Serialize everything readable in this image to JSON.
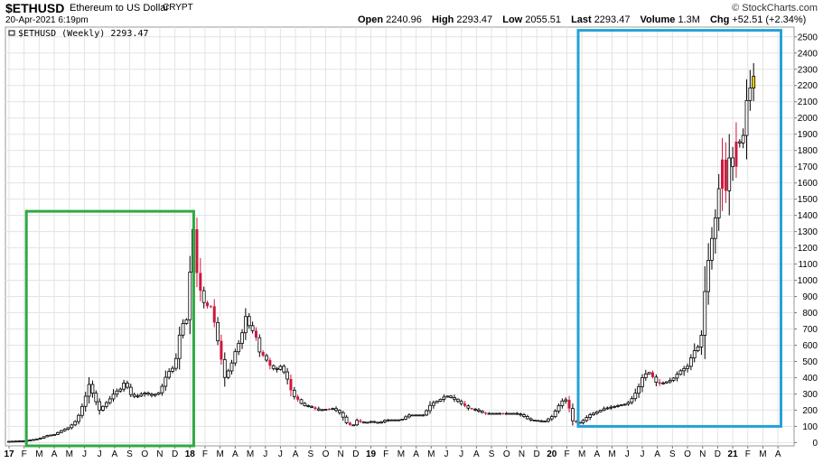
{
  "header": {
    "symbol": "$ETHUSD",
    "name": "Ethereum to US Dollar",
    "exchange": "CRYPT",
    "datetime": "20-Apr-2021 6:19pm",
    "brand": "© StockCharts.com",
    "quote": {
      "open_label": "Open",
      "open": "2240.96",
      "high_label": "High",
      "high": "2293.47",
      "low_label": "Low",
      "low": "2055.51",
      "last_label": "Last",
      "last": "2293.47",
      "volume_label": "Volume",
      "volume": "1.3M",
      "chg_label": "Chg",
      "chg": "+52.51 (+2.34%)"
    }
  },
  "chart_data": {
    "type": "candlestick",
    "legend": "$ETHUSD (Weekly) 2293.47",
    "ylim": [
      -20,
      2560
    ],
    "y_ticks": [
      0,
      100,
      200,
      300,
      400,
      500,
      600,
      700,
      800,
      900,
      1000,
      1100,
      1200,
      1300,
      1400,
      1500,
      1600,
      1700,
      1800,
      1900,
      2000,
      2100,
      2200,
      2300,
      2400,
      2500
    ],
    "x_ticks": [
      {
        "label": "17",
        "t": 0
      },
      {
        "label": "F",
        "t": 1
      },
      {
        "label": "M",
        "t": 2
      },
      {
        "label": "A",
        "t": 3
      },
      {
        "label": "M",
        "t": 4
      },
      {
        "label": "J",
        "t": 5
      },
      {
        "label": "J",
        "t": 6
      },
      {
        "label": "A",
        "t": 7
      },
      {
        "label": "S",
        "t": 8
      },
      {
        "label": "O",
        "t": 9
      },
      {
        "label": "N",
        "t": 10
      },
      {
        "label": "D",
        "t": 11
      },
      {
        "label": "18",
        "t": 12
      },
      {
        "label": "F",
        "t": 13
      },
      {
        "label": "M",
        "t": 14
      },
      {
        "label": "A",
        "t": 15
      },
      {
        "label": "M",
        "t": 16
      },
      {
        "label": "J",
        "t": 17
      },
      {
        "label": "J",
        "t": 18
      },
      {
        "label": "A",
        "t": 19
      },
      {
        "label": "S",
        "t": 20
      },
      {
        "label": "O",
        "t": 21
      },
      {
        "label": "N",
        "t": 22
      },
      {
        "label": "D",
        "t": 23
      },
      {
        "label": "19",
        "t": 24
      },
      {
        "label": "F",
        "t": 25
      },
      {
        "label": "M",
        "t": 26
      },
      {
        "label": "A",
        "t": 27
      },
      {
        "label": "M",
        "t": 28
      },
      {
        "label": "J",
        "t": 29
      },
      {
        "label": "J",
        "t": 30
      },
      {
        "label": "A",
        "t": 31
      },
      {
        "label": "S",
        "t": 32
      },
      {
        "label": "O",
        "t": 33
      },
      {
        "label": "N",
        "t": 34
      },
      {
        "label": "D",
        "t": 35
      },
      {
        "label": "20",
        "t": 36
      },
      {
        "label": "F",
        "t": 37
      },
      {
        "label": "M",
        "t": 38
      },
      {
        "label": "A",
        "t": 39
      },
      {
        "label": "M",
        "t": 40
      },
      {
        "label": "J",
        "t": 41
      },
      {
        "label": "J",
        "t": 42
      },
      {
        "label": "A",
        "t": 43
      },
      {
        "label": "S",
        "t": 44
      },
      {
        "label": "O",
        "t": 45
      },
      {
        "label": "N",
        "t": 46
      },
      {
        "label": "D",
        "t": 47
      },
      {
        "label": "21",
        "t": 48
      },
      {
        "label": "F",
        "t": 49
      },
      {
        "label": "M",
        "t": 50
      },
      {
        "label": "A",
        "t": 51
      }
    ],
    "month_span": [
      0,
      51.65
    ],
    "close_path": [
      [
        0,
        8
      ],
      [
        1,
        11
      ],
      [
        1.5,
        17
      ],
      [
        2,
        25
      ],
      [
        2.5,
        43
      ],
      [
        3,
        50
      ],
      [
        3.5,
        75
      ],
      [
        4,
        95
      ],
      [
        4.5,
        140
      ],
      [
        5,
        260
      ],
      [
        5.3,
        360
      ],
      [
        5.6,
        290
      ],
      [
        6,
        200
      ],
      [
        6.4,
        240
      ],
      [
        6.8,
        280
      ],
      [
        7,
        310
      ],
      [
        7.4,
        330
      ],
      [
        7.7,
        380
      ],
      [
        8,
        300
      ],
      [
        8.4,
        280
      ],
      [
        8.8,
        300
      ],
      [
        9,
        305
      ],
      [
        9.5,
        290
      ],
      [
        10,
        310
      ],
      [
        10.5,
        430
      ],
      [
        11,
        470
      ],
      [
        11.4,
        720
      ],
      [
        11.8,
        760
      ],
      [
        12,
        1050
      ],
      [
        12.2,
        1350
      ],
      [
        12.5,
        1000
      ],
      [
        12.8,
        900
      ],
      [
        13,
        840
      ],
      [
        13.4,
        840
      ],
      [
        13.7,
        700
      ],
      [
        14,
        550
      ],
      [
        14.3,
        400
      ],
      [
        14.7,
        470
      ],
      [
        15,
        560
      ],
      [
        15.4,
        650
      ],
      [
        15.7,
        780
      ],
      [
        16,
        700
      ],
      [
        16.3,
        680
      ],
      [
        16.6,
        560
      ],
      [
        17,
        520
      ],
      [
        17.4,
        460
      ],
      [
        17.8,
        450
      ],
      [
        18,
        470
      ],
      [
        18.4,
        410
      ],
      [
        18.8,
        290
      ],
      [
        19,
        280
      ],
      [
        19.5,
        230
      ],
      [
        20,
        220
      ],
      [
        20.5,
        200
      ],
      [
        21,
        205
      ],
      [
        21.5,
        210
      ],
      [
        22,
        180
      ],
      [
        22.4,
        120
      ],
      [
        22.8,
        100
      ],
      [
        23,
        140
      ],
      [
        23.5,
        120
      ],
      [
        24,
        130
      ],
      [
        24.5,
        120
      ],
      [
        25,
        140
      ],
      [
        25.5,
        140
      ],
      [
        26,
        140
      ],
      [
        26.5,
        170
      ],
      [
        27,
        170
      ],
      [
        27.5,
        170
      ],
      [
        28,
        240
      ],
      [
        28.5,
        260
      ],
      [
        29,
        290
      ],
      [
        29.5,
        270
      ],
      [
        30,
        240
      ],
      [
        30.5,
        210
      ],
      [
        31,
        200
      ],
      [
        31.5,
        180
      ],
      [
        32,
        180
      ],
      [
        32.5,
        180
      ],
      [
        33,
        180
      ],
      [
        33.5,
        180
      ],
      [
        34,
        170
      ],
      [
        34.5,
        140
      ],
      [
        35,
        135
      ],
      [
        35.5,
        130
      ],
      [
        36,
        160
      ],
      [
        36.4,
        220
      ],
      [
        36.8,
        270
      ],
      [
        37,
        260
      ],
      [
        37.4,
        130
      ],
      [
        37.8,
        120
      ],
      [
        38,
        130
      ],
      [
        38.5,
        170
      ],
      [
        39,
        190
      ],
      [
        39.5,
        210
      ],
      [
        40,
        220
      ],
      [
        40.5,
        230
      ],
      [
        41,
        240
      ],
      [
        41.4,
        280
      ],
      [
        41.8,
        350
      ],
      [
        42,
        400
      ],
      [
        42.4,
        440
      ],
      [
        42.8,
        390
      ],
      [
        43,
        360
      ],
      [
        43.5,
        370
      ],
      [
        44,
        390
      ],
      [
        44.5,
        440
      ],
      [
        45,
        470
      ],
      [
        45.4,
        560
      ],
      [
        45.8,
        600
      ],
      [
        46,
        700
      ],
      [
        46.2,
        1000
      ],
      [
        46.5,
        1200
      ],
      [
        46.8,
        1350
      ],
      [
        47,
        1500
      ],
      [
        47.3,
        1750
      ],
      [
        47.6,
        1500
      ],
      [
        47.8,
        1800
      ],
      [
        48,
        1700
      ],
      [
        48.3,
        1900
      ],
      [
        48.6,
        1800
      ],
      [
        48.9,
        2100
      ],
      [
        49.2,
        2200
      ],
      [
        49.5,
        2293
      ]
    ],
    "red_weeks": [
      12.4,
      12.6,
      13.2,
      13.5,
      14.0,
      16.4,
      16.8,
      17.4,
      18.6,
      19.2,
      20.2,
      21.2,
      22.6,
      23.2,
      30.2,
      30.8,
      31.6,
      32.8,
      37.2,
      37.6,
      42.6,
      43.2,
      47.2,
      47.6,
      48.2
    ],
    "annotations": [
      {
        "label": "green-box",
        "color": "#2eaa44",
        "t0": 1.15,
        "t1": 12.25,
        "y0": -20,
        "y1": 1425
      },
      {
        "label": "blue-box",
        "color": "#22a3d6",
        "t0": 37.75,
        "t1": 51.2,
        "y0": 100,
        "y1": 2540
      }
    ],
    "colors": {
      "up": "#000000",
      "down": "#d0163e",
      "last": "#f0d40c",
      "grid": "#e3e3e3"
    }
  }
}
